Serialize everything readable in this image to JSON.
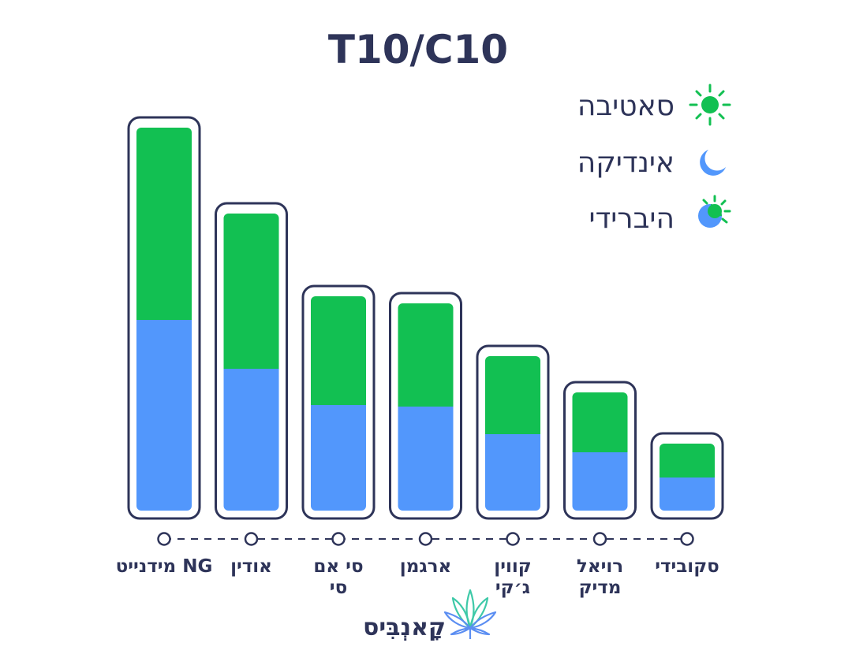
{
  "chart_data": {
    "type": "bar",
    "stacked": true,
    "title": "T10/C10",
    "categories": [
      "מידנייט NG",
      "אודין",
      "סי אם סי",
      "ארגמן",
      "קווין ג׳קי",
      "רויאל מדיק",
      "סקובידי"
    ],
    "category_lines": [
      [
        "מידנייט NG"
      ],
      [
        "אודין"
      ],
      [
        "סי אם",
        "סי"
      ],
      [
        "ארגמן"
      ],
      [
        "קווין",
        "ג׳קי"
      ],
      [
        "רויאל",
        "מדיק"
      ],
      [
        "סקובידי"
      ]
    ],
    "series": [
      {
        "name": "אינדיקה",
        "color": "#5297fc",
        "values": [
          242,
          180,
          134,
          132,
          97,
          74,
          42
        ]
      },
      {
        "name": "סאטיבה",
        "color": "#12c052",
        "values": [
          244,
          197,
          138,
          131,
          99,
          76,
          43
        ]
      }
    ],
    "ylim": [
      0,
      500
    ],
    "grid": false,
    "legend": {
      "placement": "top-right",
      "items": [
        {
          "label": "סאטיבה",
          "icon": "sun-icon",
          "color": "#12c052"
        },
        {
          "label": "אינדיקה",
          "icon": "moon-icon",
          "color": "#5297fc"
        },
        {
          "label": "היברידי",
          "icon": "hybrid-sun-moon-icon",
          "color": "#5297fc"
        }
      ]
    },
    "outline_color": "#2e3459"
  },
  "brand": {
    "name": "קָאנְבִּיס",
    "logo_icon": "cannabis-leaf-icon"
  }
}
